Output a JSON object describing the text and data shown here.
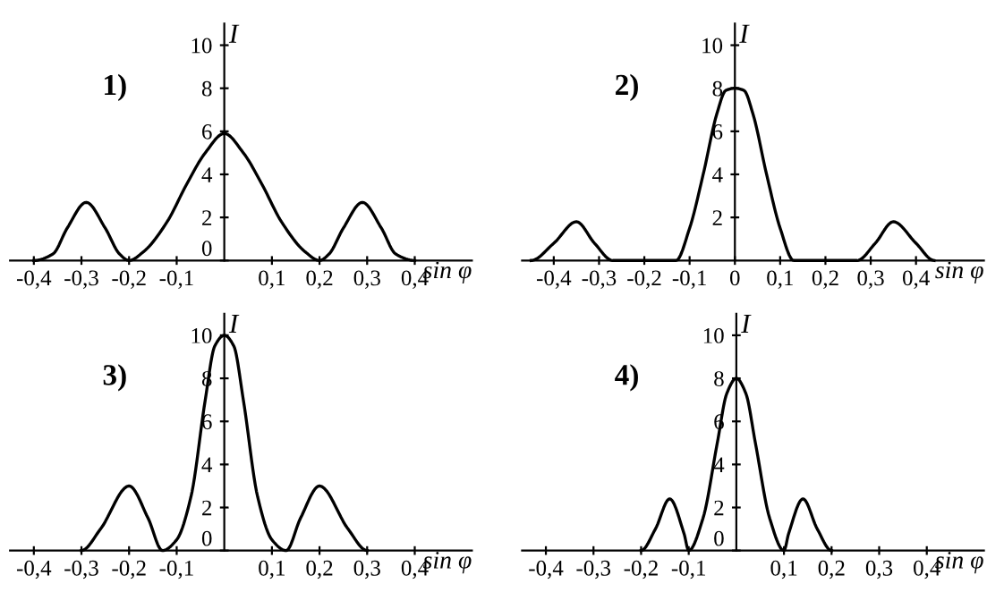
{
  "chart_data": [
    {
      "type": "line",
      "title": "1)",
      "xlabel": "sin φ",
      "ylabel": "I",
      "x": [
        -0.4,
        -0.36,
        -0.33,
        -0.29,
        -0.25,
        -0.22,
        -0.2,
        -0.17,
        -0.12,
        -0.08,
        -0.04,
        0,
        0.04,
        0.08,
        0.12,
        0.17,
        0.2,
        0.22,
        0.25,
        0.29,
        0.33,
        0.36,
        0.4
      ],
      "series": [
        {
          "color": "#000000",
          "values": [
            0,
            0.3,
            1.5,
            2.7,
            1.5,
            0.3,
            0,
            0.4,
            1.8,
            3.5,
            5.0,
            5.9,
            5.0,
            3.5,
            1.8,
            0.4,
            0,
            0.3,
            1.5,
            2.7,
            1.5,
            0.3,
            0
          ]
        }
      ],
      "xlim": [
        -0.45,
        0.52
      ],
      "ylim": [
        0,
        11
      ],
      "xticks": [
        {
          "value": -0.4,
          "label": "-0,4"
        },
        {
          "value": -0.3,
          "label": "-0,3"
        },
        {
          "value": -0.2,
          "label": "-0,2"
        },
        {
          "value": -0.1,
          "label": "-0,1"
        },
        {
          "value": 0.1,
          "label": "0,1"
        },
        {
          "value": 0.2,
          "label": "0,2"
        },
        {
          "value": 0.3,
          "label": "0,3"
        },
        {
          "value": 0.4,
          "label": "0,4"
        }
      ],
      "yticks": [
        0,
        2,
        4,
        6,
        8,
        10
      ],
      "grid": false,
      "marker": "none",
      "line_style": "solid"
    },
    {
      "type": "line",
      "title": "2)",
      "xlabel": "sin φ",
      "ylabel": "I",
      "x": [
        -0.45,
        -0.4,
        -0.35,
        -0.31,
        -0.27,
        -0.13,
        -0.1,
        -0.07,
        -0.04,
        -0.02,
        0,
        0.02,
        0.04,
        0.07,
        0.1,
        0.13,
        0.27,
        0.31,
        0.35,
        0.4,
        0.44
      ],
      "series": [
        {
          "color": "#000000",
          "values": [
            0,
            0.8,
            1.8,
            0.8,
            0,
            0,
            1.5,
            4,
            6.8,
            7.9,
            8,
            7.9,
            6.8,
            4,
            1.5,
            0,
            0,
            0.8,
            1.8,
            0.8,
            0
          ]
        }
      ],
      "xlim": [
        -0.47,
        0.55
      ],
      "ylim": [
        0,
        11
      ],
      "xticks": [
        {
          "value": -0.4,
          "label": "-0,4"
        },
        {
          "value": -0.3,
          "label": "-0,3"
        },
        {
          "value": -0.2,
          "label": "-0,2"
        },
        {
          "value": -0.1,
          "label": "-0,1"
        },
        0,
        {
          "value": 0.1,
          "label": "0,1"
        },
        {
          "value": 0.2,
          "label": "0,2"
        },
        {
          "value": 0.3,
          "label": "0,3"
        },
        {
          "value": 0.4,
          "label": "0,4"
        }
      ],
      "yticks": [
        2,
        4,
        6,
        8,
        10
      ],
      "grid": false,
      "marker": "none",
      "line_style": "solid"
    },
    {
      "type": "line",
      "title": "3)",
      "xlabel": "sin φ",
      "ylabel": "I",
      "x": [
        -0.3,
        -0.26,
        -0.2,
        -0.16,
        -0.13,
        -0.1,
        -0.07,
        -0.04,
        -0.02,
        0,
        0.02,
        0.04,
        0.07,
        0.1,
        0.13,
        0.16,
        0.2,
        0.26,
        0.3
      ],
      "series": [
        {
          "color": "#000000",
          "values": [
            0,
            1,
            3,
            1.5,
            0,
            0.5,
            2.5,
            7,
            9.5,
            10,
            9.5,
            7,
            2.5,
            0.5,
            0,
            1.5,
            3,
            1,
            0
          ]
        }
      ],
      "xlim": [
        -0.45,
        0.52
      ],
      "ylim": [
        0,
        11
      ],
      "xticks": [
        {
          "value": -0.4,
          "label": "-0,4"
        },
        {
          "value": -0.3,
          "label": "-0,3"
        },
        {
          "value": -0.2,
          "label": "-0,2"
        },
        {
          "value": -0.1,
          "label": "-0,1"
        },
        {
          "value": 0.1,
          "label": "0,1"
        },
        {
          "value": 0.2,
          "label": "0,2"
        },
        {
          "value": 0.3,
          "label": "0,3"
        },
        {
          "value": 0.4,
          "label": "0,4"
        }
      ],
      "yticks": [
        0,
        2,
        4,
        6,
        8,
        10
      ],
      "grid": false,
      "marker": "none",
      "line_style": "solid"
    },
    {
      "type": "line",
      "title": "4)",
      "xlabel": "sin φ",
      "ylabel": "I",
      "x": [
        -0.2,
        -0.17,
        -0.14,
        -0.11,
        -0.1,
        -0.07,
        -0.04,
        -0.02,
        0,
        0.02,
        0.04,
        0.07,
        0.1,
        0.11,
        0.14,
        0.17,
        0.2
      ],
      "series": [
        {
          "color": "#000000",
          "values": [
            0,
            1,
            2.4,
            0.8,
            0,
            1.5,
            5,
            7.3,
            8,
            7.3,
            5,
            1.5,
            0,
            0.8,
            2.4,
            1,
            0
          ]
        }
      ],
      "xlim": [
        -0.45,
        0.52
      ],
      "ylim": [
        0,
        11
      ],
      "xticks": [
        {
          "value": -0.4,
          "label": "-0,4"
        },
        {
          "value": -0.3,
          "label": "-0,3"
        },
        {
          "value": -0.2,
          "label": "-0,2"
        },
        {
          "value": -0.1,
          "label": "-0,1"
        },
        {
          "value": 0.1,
          "label": "0,1"
        },
        {
          "value": 0.2,
          "label": "0,2"
        },
        {
          "value": 0.3,
          "label": "0,3"
        },
        {
          "value": 0.4,
          "label": "0,4"
        }
      ],
      "yticks": [
        0,
        2,
        4,
        6,
        8,
        10
      ],
      "grid": false,
      "marker": "none",
      "line_style": "solid"
    }
  ]
}
